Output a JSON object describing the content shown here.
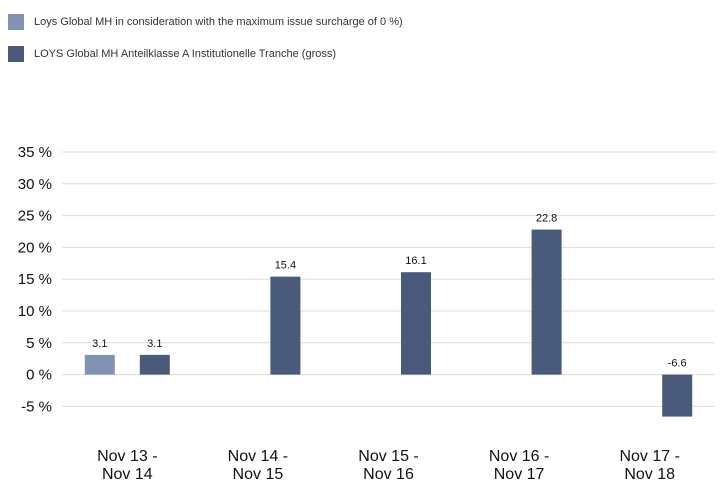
{
  "legend": {
    "items": [
      {
        "label": "Loys Global MH in consideration with the maximum issue surcharge of 0 %)",
        "color": "#8093b3"
      },
      {
        "label": "LOYS Global MH Anteilklasse A Institutionelle Tranche (gross)",
        "color": "#4a5a7a"
      }
    ]
  },
  "chart_data": {
    "type": "bar",
    "categories": [
      [
        "Nov 13 -",
        "Nov 14"
      ],
      [
        "Nov 14 -",
        "Nov 15"
      ],
      [
        "Nov 15 -",
        "Nov 16"
      ],
      [
        "Nov 16 -",
        "Nov 17"
      ],
      [
        "Nov 17 -",
        "Nov 18"
      ]
    ],
    "series": [
      {
        "color": "#8093b3",
        "values": [
          3.1,
          null,
          null,
          null,
          null
        ]
      },
      {
        "color": "#4a5a7a",
        "values": [
          3.1,
          15.4,
          16.1,
          22.8,
          -6.6
        ]
      }
    ],
    "data_labels": [
      [
        "3.1",
        null,
        null,
        null,
        null
      ],
      [
        "3.1",
        "15.4",
        "16.1",
        "22.8",
        "-6.6"
      ]
    ],
    "ylim": [
      -5,
      35
    ],
    "yticks": [
      35,
      30,
      25,
      20,
      15,
      10,
      5,
      0,
      -5
    ],
    "ytick_labels": [
      "35 %",
      "30 %",
      "25 %",
      "20 %",
      "15 %",
      "10 %",
      "5 %",
      "0 %",
      "-5 %"
    ],
    "grid": true,
    "legend_position": "top-left",
    "title": "",
    "xlabel": "",
    "ylabel": ""
  }
}
